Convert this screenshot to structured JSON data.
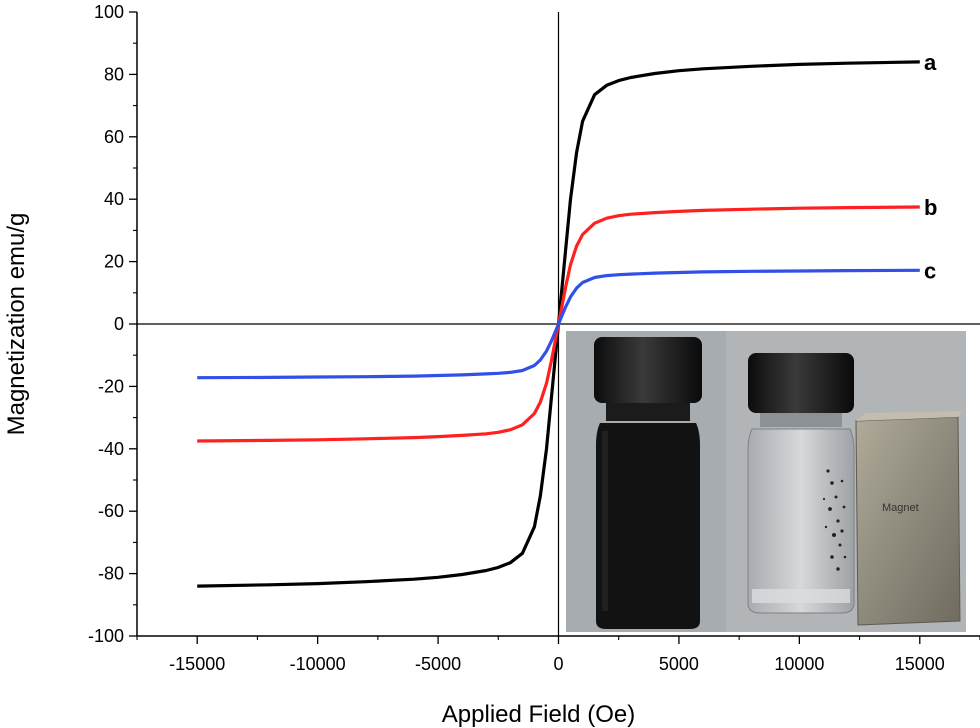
{
  "chart_data": {
    "type": "line",
    "xlabel": "Applied Field (Oe)",
    "ylabel": "Magnetization emu/g",
    "xlim": [
      -17500,
      17500
    ],
    "ylim": [
      -100,
      100
    ],
    "xticks": [
      -15000,
      -10000,
      -5000,
      0,
      5000,
      10000,
      15000
    ],
    "yticks": [
      -100,
      -80,
      -60,
      -40,
      -20,
      0,
      20,
      40,
      60,
      80,
      100
    ],
    "xtick_labels": [
      "-15000",
      "-10000",
      "-5000",
      "0",
      "5000",
      "10000",
      "15000"
    ],
    "ytick_labels": [
      "-100",
      "-80",
      "-60",
      "-40",
      "-20",
      "0",
      "20",
      "40",
      "60",
      "80",
      "100"
    ],
    "grid": false,
    "series": [
      {
        "name": "a",
        "color": "#000000",
        "x": [
          -15000,
          -12000,
          -10000,
          -8000,
          -6000,
          -5000,
          -4000,
          -3000,
          -2500,
          -2000,
          -1500,
          -1000,
          -750,
          -500,
          -300,
          -150,
          0,
          150,
          300,
          500,
          750,
          1000,
          1500,
          2000,
          2500,
          3000,
          4000,
          5000,
          6000,
          8000,
          10000,
          12000,
          15000
        ],
        "y": [
          -84,
          -83.6,
          -83.2,
          -82.6,
          -81.8,
          -81.2,
          -80.3,
          -79,
          -78,
          -76.5,
          -73.5,
          -65,
          -55,
          -40,
          -24,
          -12,
          0,
          12,
          24,
          40,
          55,
          65,
          73.5,
          76.5,
          78,
          79,
          80.3,
          81.2,
          81.8,
          82.6,
          83.2,
          83.6,
          84
        ]
      },
      {
        "name": "b",
        "color": "#ff2020",
        "x": [
          -15000,
          -12000,
          -10000,
          -8000,
          -6000,
          -5000,
          -4000,
          -3000,
          -2500,
          -2000,
          -1500,
          -1000,
          -750,
          -500,
          -300,
          -150,
          0,
          150,
          300,
          500,
          750,
          1000,
          1500,
          2000,
          2500,
          3000,
          4000,
          5000,
          6000,
          8000,
          10000,
          12000,
          15000
        ],
        "y": [
          -37.5,
          -37.3,
          -37.1,
          -36.8,
          -36.4,
          -36.1,
          -35.7,
          -35.2,
          -34.7,
          -33.9,
          -32.3,
          -28.7,
          -25,
          -19,
          -12,
          -6,
          0,
          6,
          12,
          19,
          25,
          28.7,
          32.3,
          33.9,
          34.7,
          35.2,
          35.7,
          36.1,
          36.4,
          36.8,
          37.1,
          37.3,
          37.5
        ]
      },
      {
        "name": "c",
        "color": "#3050e8",
        "x": [
          -15000,
          -12000,
          -10000,
          -8000,
          -6000,
          -5000,
          -4000,
          -3000,
          -2500,
          -2000,
          -1500,
          -1000,
          -750,
          -500,
          -300,
          -150,
          0,
          150,
          300,
          500,
          750,
          1000,
          1500,
          2000,
          2500,
          3000,
          4000,
          5000,
          6000,
          8000,
          10000,
          12000,
          15000
        ],
        "y": [
          -17.2,
          -17.1,
          -17,
          -16.9,
          -16.7,
          -16.5,
          -16.3,
          -16,
          -15.8,
          -15.5,
          -14.9,
          -13.3,
          -11.5,
          -8.7,
          -5.5,
          -2.8,
          0,
          2.8,
          5.5,
          8.7,
          11.5,
          13.3,
          14.9,
          15.5,
          15.8,
          16,
          16.3,
          16.5,
          16.7,
          16.9,
          17,
          17.1,
          17.2
        ]
      }
    ],
    "inset": {
      "type": "photograph",
      "label": "Magnet"
    }
  }
}
